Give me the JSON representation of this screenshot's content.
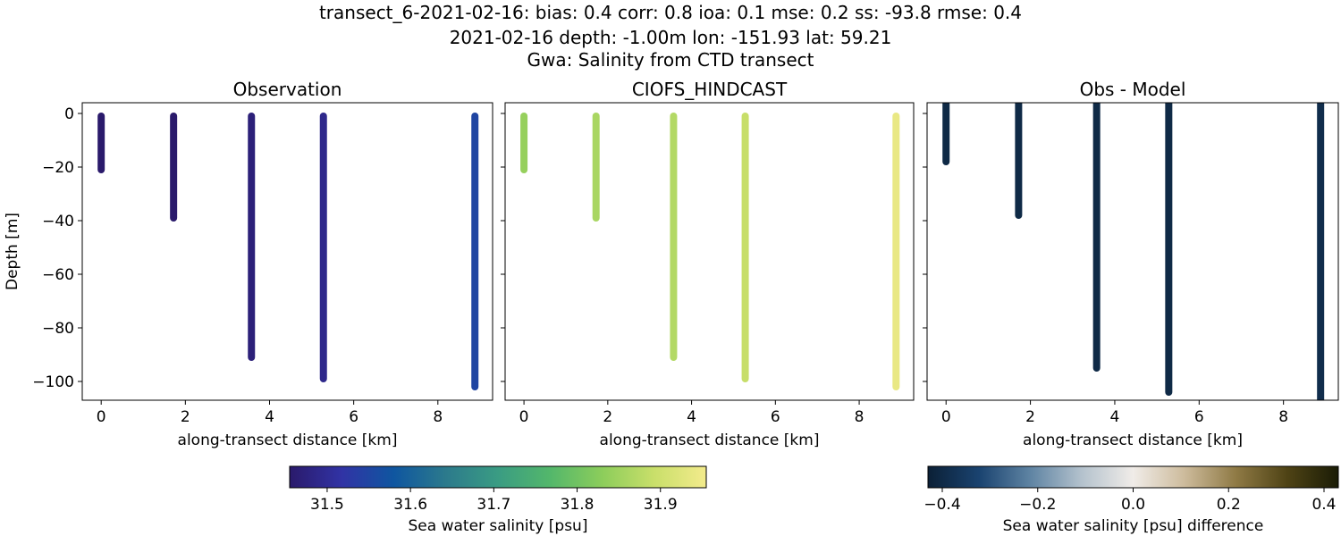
{
  "title": {
    "line1": "transect_6-2021-02-16: bias: 0.4  corr: 0.8  ioa: 0.1  mse: 0.2  ss: -93.8  rmse: 0.4",
    "line2": "2021-02-16 depth: -1.00m lon: -151.93 lat: 59.21",
    "line3": "Gwa: Salinity from CTD transect"
  },
  "chart_data": [
    {
      "type": "scatter",
      "id": "obs",
      "title": "Observation",
      "xlabel": "along-transect distance [km]",
      "ylabel": "Depth [m]",
      "xlim": [
        -0.45,
        9.3
      ],
      "ylim": [
        -107,
        4
      ],
      "xticks": [
        0,
        2,
        4,
        6,
        8
      ],
      "yticks": [
        0,
        -20,
        -40,
        -60,
        -80,
        -100
      ],
      "ytick_labels": [
        "0",
        "−20",
        "−40",
        "−60",
        "−80",
        "−100"
      ],
      "colormap": "thermal",
      "series": [
        {
          "x": 0.0,
          "depth_top": -1,
          "depth_bottom": -21,
          "salinity": 31.44
        },
        {
          "x": 1.72,
          "depth_top": -1,
          "depth_bottom": -39,
          "salinity": 31.45
        },
        {
          "x": 3.57,
          "depth_top": -1,
          "depth_bottom": -91,
          "salinity": 31.47
        },
        {
          "x": 5.28,
          "depth_top": -1,
          "depth_bottom": -99,
          "salinity": 31.49
        },
        {
          "x": 8.88,
          "depth_top": -1,
          "depth_bottom": -102,
          "salinity": 31.55
        }
      ]
    },
    {
      "type": "scatter",
      "id": "model",
      "title": "CIOFS_HINDCAST",
      "xlabel": "along-transect distance [km]",
      "xlim": [
        -0.45,
        9.3
      ],
      "ylim": [
        -107,
        4
      ],
      "xticks": [
        0,
        2,
        4,
        6,
        8
      ],
      "colormap": "thermal",
      "series": [
        {
          "x": 0.0,
          "depth_top": -1,
          "depth_bottom": -21,
          "salinity": 31.84
        },
        {
          "x": 1.72,
          "depth_top": -1,
          "depth_bottom": -39,
          "salinity": 31.86
        },
        {
          "x": 3.57,
          "depth_top": -1,
          "depth_bottom": -91,
          "salinity": 31.87
        },
        {
          "x": 5.28,
          "depth_top": -1,
          "depth_bottom": -99,
          "salinity": 31.89
        },
        {
          "x": 8.88,
          "depth_top": -1,
          "depth_bottom": -102,
          "salinity": 31.94
        }
      ]
    },
    {
      "type": "scatter",
      "id": "diff",
      "title": "Obs - Model",
      "xlabel": "along-transect distance [km]",
      "xlim": [
        -0.45,
        9.3
      ],
      "ylim": [
        -107,
        4
      ],
      "xticks": [
        0,
        2,
        4,
        6,
        8
      ],
      "colormap": "diff",
      "series": [
        {
          "x": 0.0,
          "depth_top": 4,
          "depth_bottom": -18,
          "difference": -0.4
        },
        {
          "x": 1.72,
          "depth_top": 4,
          "depth_bottom": -38,
          "difference": -0.4
        },
        {
          "x": 3.57,
          "depth_top": 4,
          "depth_bottom": -95,
          "difference": -0.4
        },
        {
          "x": 5.28,
          "depth_top": 4,
          "depth_bottom": -104,
          "difference": -0.4
        },
        {
          "x": 8.88,
          "depth_top": 4,
          "depth_bottom": -107,
          "difference": -0.39
        }
      ]
    }
  ],
  "colorbars": [
    {
      "id": "salinity",
      "label": "Sea water salinity [psu]",
      "range": [
        31.455,
        31.955
      ],
      "ticks": [
        31.5,
        31.6,
        31.7,
        31.8,
        31.9
      ],
      "tick_labels": [
        "31.5",
        "31.6",
        "31.7",
        "31.8",
        "31.9"
      ],
      "stops": [
        "#2a1a6b",
        "#3133a5",
        "#0f56a0",
        "#2c7a8c",
        "#3a9c83",
        "#53b76b",
        "#8ccd5b",
        "#c9df6a",
        "#f3eb8c"
      ]
    },
    {
      "id": "difference",
      "label": "Sea water salinity [psu] difference",
      "range": [
        -0.43,
        0.43
      ],
      "ticks": [
        -0.4,
        -0.2,
        0.0,
        0.2,
        0.4
      ],
      "tick_labels": [
        "−0.4",
        "−0.2",
        "0.0",
        "0.2",
        "0.4"
      ],
      "stops": [
        "#0b2036",
        "#1a4370",
        "#5f84a3",
        "#b4c2cd",
        "#f0ece8",
        "#cdbb9c",
        "#8f7a45",
        "#4f4315",
        "#1a1c06"
      ]
    }
  ]
}
